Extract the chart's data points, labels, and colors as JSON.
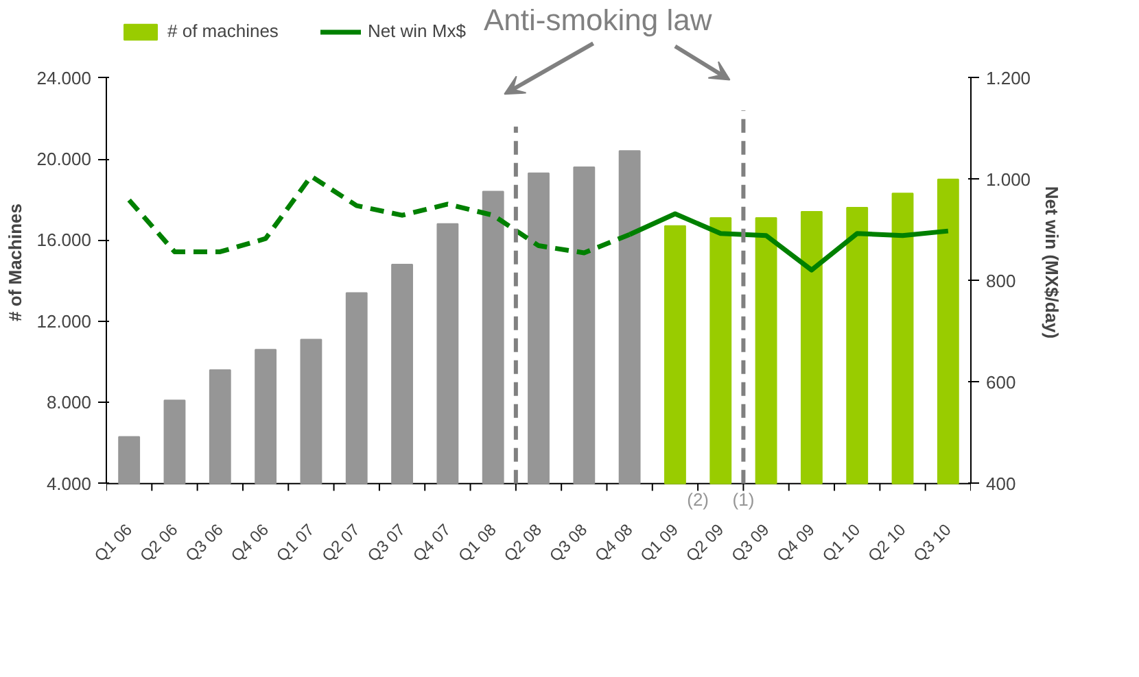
{
  "chart_data": {
    "type": "bar",
    "ylabel": "# of Machines",
    "y2label": "Net win (MX$/day)",
    "annotations": [
      "Anti-smoking law",
      "(2)",
      "(1)"
    ],
    "categories": [
      "Q1 06",
      "Q2 06",
      "Q3 06",
      "Q4 06",
      "Q1 07",
      "Q2 07",
      "Q3 07",
      "Q4 07",
      "Q1 08",
      "Q2 08",
      "Q3 08",
      "Q4 08",
      "Q1 09",
      "Q2 09",
      "Q3 09",
      "Q4 09",
      "Q1 10",
      "Q2 10",
      "Q3 10"
    ],
    "series": [
      {
        "name": "# of machines",
        "colors": [
          "#969696",
          "#969696",
          "#969696",
          "#969696",
          "#969696",
          "#969696",
          "#969696",
          "#969696",
          "#969696",
          "#969696",
          "#969696",
          "#969696",
          "#99cc00",
          "#99cc00",
          "#99cc00",
          "#99cc00",
          "#99cc00",
          "#99cc00",
          "#99cc00"
        ],
        "values": [
          6300,
          8100,
          9600,
          10600,
          11100,
          13400,
          14800,
          16800,
          18400,
          19300,
          19600,
          20400,
          16700,
          17100,
          17100,
          17400,
          17600,
          18300,
          19000
        ]
      },
      {
        "type": "line",
        "axis": "y2",
        "color": "#008000",
        "line_style": "dashed",
        "values": [
          959,
          857,
          857,
          883,
          1006,
          948,
          929,
          951,
          929,
          869,
          855,
          891,
          null,
          null,
          null,
          null,
          null,
          null,
          null
        ]
      },
      {
        "type": "line",
        "axis": "y2",
        "name": "Net win Mx$",
        "color": "#008000",
        "line_style": "solid",
        "values": [
          null,
          null,
          null,
          null,
          null,
          null,
          null,
          null,
          null,
          null,
          null,
          891,
          932,
          893,
          889,
          821,
          893,
          889,
          898
        ]
      }
    ],
    "ylim": [
      4000,
      24000
    ],
    "yticks": [
      {
        "value": 4000,
        "label": "4.000"
      },
      {
        "value": 8000,
        "label": "8.000"
      },
      {
        "value": 12000,
        "label": "12.000"
      },
      {
        "value": 16000,
        "label": "16.000"
      },
      {
        "value": 20000,
        "label": "20.000"
      },
      {
        "value": 24000,
        "label": "24.000"
      }
    ],
    "y2lim": [
      400,
      1200
    ],
    "y2ticks": [
      400,
      600,
      800,
      {
        "value": 1000,
        "label": "1.000"
      },
      {
        "value": 1200,
        "label": "1.200"
      }
    ],
    "grid": false,
    "legend": "top left"
  }
}
